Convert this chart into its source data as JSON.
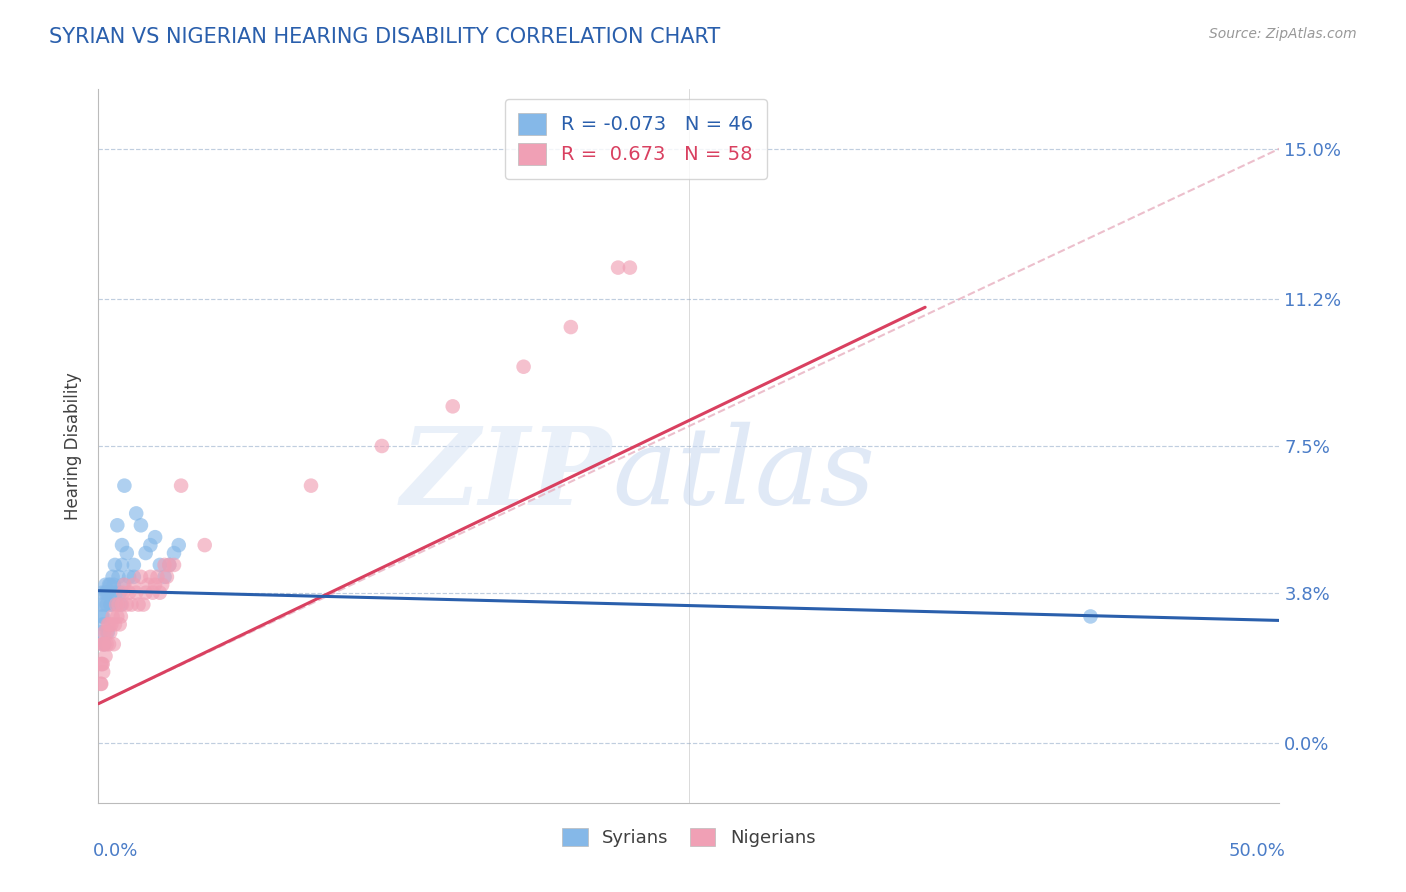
{
  "title": "SYRIAN VS NIGERIAN HEARING DISABILITY CORRELATION CHART",
  "source": "Source: ZipAtlas.com",
  "ylabel": "Hearing Disability",
  "ytick_values": [
    0.0,
    3.8,
    7.5,
    11.2,
    15.0
  ],
  "xlim": [
    0.0,
    50.0
  ],
  "ylim": [
    -1.5,
    16.5
  ],
  "R_syrian": -0.073,
  "N_syrian": 46,
  "R_nigerian": 0.673,
  "N_nigerian": 58,
  "color_syrian": "#85B8E8",
  "color_nigerian": "#F0A0B5",
  "color_title": "#2A5FAC",
  "color_axis_labels": "#4A7CC7",
  "color_trendline_syrian": "#2A5FAC",
  "color_trendline_nigerian": "#D94060",
  "trendline_ext_color": "#E8B0C0",
  "syrian_x": [
    0.1,
    0.1,
    0.15,
    0.2,
    0.2,
    0.25,
    0.3,
    0.3,
    0.35,
    0.4,
    0.4,
    0.5,
    0.5,
    0.55,
    0.6,
    0.7,
    0.8,
    0.9,
    1.0,
    1.0,
    1.1,
    1.2,
    1.3,
    1.5,
    1.6,
    1.8,
    2.0,
    2.2,
    2.4,
    2.6,
    2.8,
    3.0,
    3.2,
    3.4,
    0.15,
    0.25,
    0.35,
    0.45,
    0.55,
    0.65,
    0.75,
    0.85,
    0.95,
    1.05,
    1.5,
    42.0
  ],
  "syrian_y": [
    3.5,
    2.8,
    3.8,
    3.2,
    3.0,
    2.5,
    3.8,
    4.0,
    3.5,
    3.8,
    2.8,
    3.5,
    4.0,
    3.8,
    4.2,
    4.5,
    5.5,
    3.8,
    4.5,
    5.0,
    6.5,
    4.8,
    4.2,
    4.5,
    5.8,
    5.5,
    4.8,
    5.0,
    5.2,
    4.5,
    4.2,
    4.5,
    4.8,
    5.0,
    3.2,
    3.5,
    3.8,
    4.0,
    3.5,
    4.0,
    3.8,
    4.2,
    3.5,
    4.0,
    4.2,
    3.2
  ],
  "nigerian_x": [
    0.1,
    0.15,
    0.2,
    0.2,
    0.25,
    0.3,
    0.35,
    0.4,
    0.45,
    0.5,
    0.55,
    0.6,
    0.65,
    0.7,
    0.75,
    0.8,
    0.85,
    0.9,
    0.95,
    1.0,
    1.05,
    1.1,
    1.2,
    1.3,
    1.4,
    1.5,
    1.6,
    1.7,
    1.8,
    1.9,
    2.0,
    2.1,
    2.2,
    2.3,
    2.4,
    2.5,
    2.6,
    2.7,
    2.8,
    2.9,
    3.0,
    3.2,
    3.5,
    0.1,
    0.15,
    0.25,
    0.35,
    0.45,
    4.5,
    9.0,
    12.0,
    15.0,
    18.0,
    20.0,
    22.0,
    0.12,
    0.18,
    22.5
  ],
  "nigerian_y": [
    1.5,
    2.0,
    2.5,
    1.8,
    2.5,
    2.2,
    2.8,
    3.0,
    2.5,
    2.8,
    3.0,
    3.2,
    2.5,
    3.0,
    3.5,
    3.2,
    3.5,
    3.0,
    3.2,
    3.5,
    3.8,
    4.0,
    3.5,
    3.8,
    3.5,
    4.0,
    3.8,
    3.5,
    4.2,
    3.5,
    3.8,
    4.0,
    4.2,
    3.8,
    4.0,
    4.2,
    3.8,
    4.0,
    4.5,
    4.2,
    4.5,
    4.5,
    6.5,
    2.0,
    2.5,
    2.8,
    2.5,
    3.0,
    5.0,
    6.5,
    7.5,
    8.5,
    9.5,
    10.5,
    12.0,
    1.5,
    2.0,
    12.0
  ],
  "nig_trendline_x0": 0.0,
  "nig_trendline_y0": 1.0,
  "nig_trendline_x1": 35.0,
  "nig_trendline_y1": 11.0,
  "syr_trendline_x0": 0.0,
  "syr_trendline_y0": 3.85,
  "syr_trendline_x1": 50.0,
  "syr_trendline_y1": 3.1,
  "ext_x0": 35.0,
  "ext_y0": 11.0,
  "ext_x1": 50.0,
  "ext_y1": 15.0
}
